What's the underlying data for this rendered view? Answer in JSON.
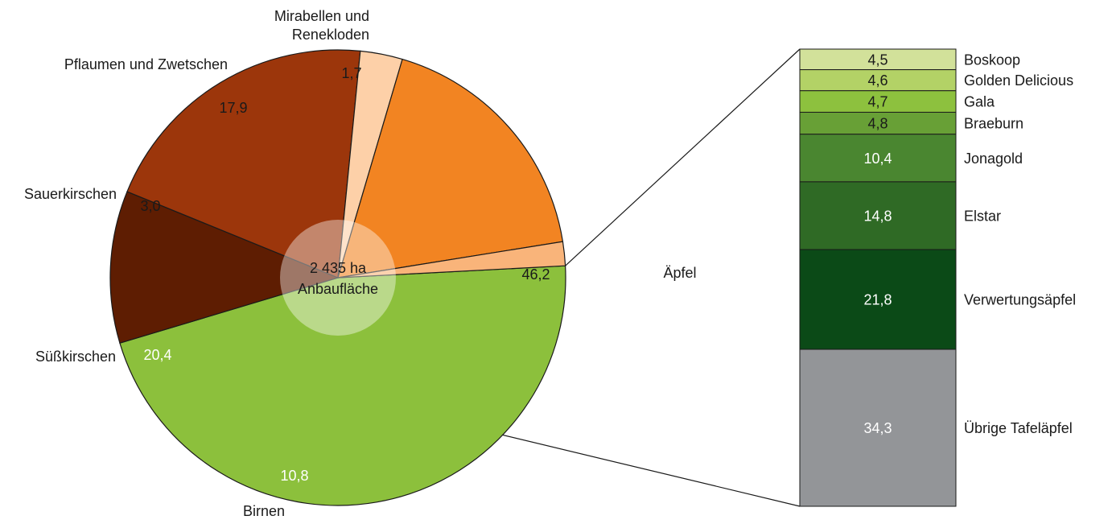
{
  "chart_data": [
    {
      "type": "pie",
      "center_text": [
        "2 435 ha",
        "Anbaufläche"
      ],
      "slices": [
        {
          "label": "Äpfel",
          "value": 46.2,
          "value_label": "46,2",
          "color": "#8cc03c",
          "text_color": "#1a1a1a"
        },
        {
          "label": "Birnen",
          "value": 10.8,
          "value_label": "10,8",
          "color": "#5e1d02",
          "text_color": "#ffffff"
        },
        {
          "label": "Süßkirschen",
          "value": 20.4,
          "value_label": "20,4",
          "color": "#9c360b",
          "text_color": "#ffffff"
        },
        {
          "label": "Sauerkirschen",
          "value": 3.0,
          "value_label": "3,0",
          "color": "#fdd0a8",
          "text_color": "#1a1a1a"
        },
        {
          "label": "Pflaumen und Zwetschen",
          "value": 17.9,
          "value_label": "17,9",
          "color": "#f28422",
          "text_color": "#1a1a1a"
        },
        {
          "label_lines": [
            "Mirabellen und",
            "Renekloden"
          ],
          "value": 1.7,
          "value_label": "1,7",
          "color": "#f9b47a",
          "text_color": "#1a1a1a"
        }
      ],
      "breakout_of": "Äpfel"
    },
    {
      "type": "bar",
      "stacked": true,
      "orientation": "vertical",
      "segments": [
        {
          "label": "Boskoop",
          "value": 4.5,
          "value_label": "4,5",
          "color": "#d2e19a",
          "text_color": "#1a1a1a"
        },
        {
          "label": "Golden Delicious",
          "value": 4.6,
          "value_label": "4,6",
          "color": "#b3d266",
          "text_color": "#1a1a1a"
        },
        {
          "label": "Gala",
          "value": 4.7,
          "value_label": "4,7",
          "color": "#8dc13e",
          "text_color": "#1a1a1a"
        },
        {
          "label": "Braeburn",
          "value": 4.8,
          "value_label": "4,8",
          "color": "#68a036",
          "text_color": "#1a1a1a"
        },
        {
          "label": "Jonagold",
          "value": 10.4,
          "value_label": "10,4",
          "color": "#4a8630",
          "text_color": "#ffffff"
        },
        {
          "label": "Elstar",
          "value": 14.8,
          "value_label": "14,8",
          "color": "#2f6a25",
          "text_color": "#ffffff"
        },
        {
          "label": "Verwertungsäpfel",
          "value": 21.8,
          "value_label": "21,8",
          "color": "#0b4a17",
          "text_color": "#ffffff"
        },
        {
          "label": "Übrige Tafeläpfel",
          "value": 34.3,
          "value_label": "34,3",
          "color": "#939598",
          "text_color": "#ffffff"
        }
      ]
    }
  ]
}
